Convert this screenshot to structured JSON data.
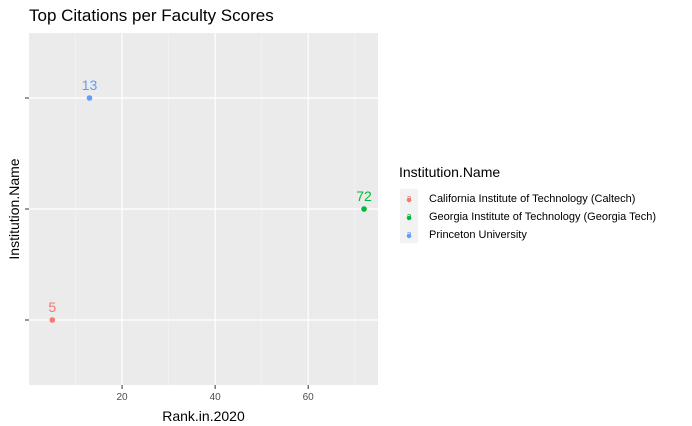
{
  "chart_data": {
    "type": "scatter",
    "title": "Top Citations per Faculty Scores",
    "xlabel": "Rank.in.2020",
    "ylabel": "Institution.Name",
    "xlim": [
      0,
      75
    ],
    "x_ticks": [
      20,
      40,
      60
    ],
    "x_tick_labels": [
      "20",
      "40",
      "60"
    ],
    "y_categories": [
      "California Institute of Technology (Caltech)",
      "Georgia Institute of Technology (Georgia Tech)",
      "Princeton University"
    ],
    "y_tick_labels_visible": false,
    "grid": true,
    "legend": {
      "title": "Institution.Name",
      "placement": "right",
      "key_glyph": "a"
    },
    "series": [
      {
        "name": "California Institute of Technology (Caltech)",
        "color": "#F8766D",
        "x": 5,
        "y": "California Institute of Technology (Caltech)",
        "label": "5"
      },
      {
        "name": "Georgia Institute of Technology (Georgia Tech)",
        "color": "#00BA38",
        "x": 72,
        "y": "Georgia Institute of Technology (Georgia Tech)",
        "label": "72"
      },
      {
        "name": "Princeton University",
        "color": "#619CFF",
        "x": 13,
        "y": "Princeton University",
        "label": "13"
      }
    ]
  }
}
